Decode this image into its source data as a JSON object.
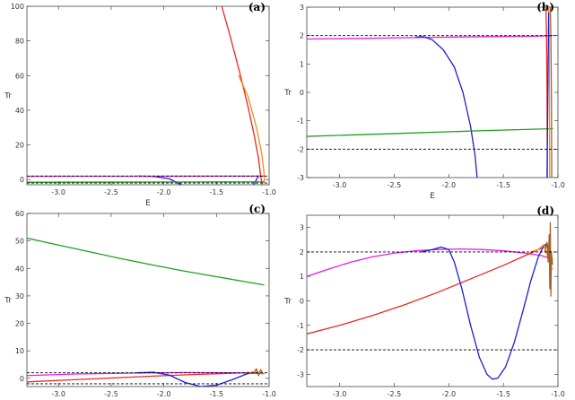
{
  "figure": {
    "background": "#ffffff"
  },
  "colors": {
    "red": "#e8281e",
    "orange": "#f08c1e",
    "blue": "#1e1ed2",
    "green": "#1ea01e",
    "magenta": "#e61ee6",
    "brown": "#a0642d",
    "black": "#000000"
  },
  "chart_data": [
    {
      "type": "line",
      "panel_label": "(a)",
      "xlabel": "E",
      "ylabel": "Tr",
      "xlim": [
        -3.3,
        -1.0
      ],
      "ylim": [
        -3,
        100
      ],
      "xticks": [
        -3.0,
        -2.5,
        -2.0,
        -1.5,
        -1.0
      ],
      "xtick_labels": [
        "-3.0",
        "-2.5",
        "-2.0",
        "-1.5",
        "-1.0"
      ],
      "yticks": [
        0,
        20,
        40,
        60,
        80,
        100
      ],
      "ytick_labels": [
        "0",
        "20",
        "40",
        "60",
        "80",
        "100"
      ],
      "hlines": [
        {
          "y": 2,
          "style": "dashed",
          "color": "#000000"
        },
        {
          "y": -2,
          "style": "dashed",
          "color": "#000000"
        }
      ],
      "series": [
        {
          "color": "#e8281e",
          "points": [
            [
              -1.45,
              100
            ],
            [
              -1.38,
              85
            ],
            [
              -1.28,
              62
            ],
            [
              -1.2,
              42
            ],
            [
              -1.14,
              25
            ],
            [
              -1.1,
              12
            ],
            [
              -1.08,
              2
            ],
            [
              -1.065,
              -3
            ]
          ]
        },
        {
          "color": "#f08c1e",
          "points": [
            [
              -1.29,
              60
            ],
            [
              -1.2,
              48
            ],
            [
              -1.12,
              30
            ],
            [
              -1.07,
              15
            ],
            [
              -1.05,
              5
            ],
            [
              -1.045,
              0
            ],
            [
              -1.05,
              -2
            ]
          ]
        },
        {
          "color": "#1e1ed2",
          "points": [
            [
              -2.25,
              2
            ],
            [
              -2.1,
              1.8
            ],
            [
              -1.95,
              0.5
            ],
            [
              -1.8,
              -4
            ],
            [
              -1.6,
              -10
            ],
            [
              -1.4,
              -13
            ],
            [
              -1.25,
              -12
            ],
            [
              -1.17,
              -6
            ],
            [
              -1.12,
              0
            ],
            [
              -1.1,
              2
            ]
          ]
        },
        {
          "color": "#e61ee6",
          "points": [
            [
              -3.3,
              1.88
            ],
            [
              -2.8,
              1.9
            ],
            [
              -2.3,
              1.93
            ],
            [
              -1.7,
              1.96
            ],
            [
              -1.2,
              1.98
            ],
            [
              -1.05,
              2.0
            ]
          ]
        },
        {
          "color": "#1ea01e",
          "points": [
            [
              -3.3,
              -1.55
            ],
            [
              -2.5,
              -1.48
            ],
            [
              -1.7,
              -1.4
            ],
            [
              -1.05,
              -1.32
            ]
          ]
        }
      ]
    },
    {
      "type": "line",
      "panel_label": "(b)",
      "xlabel": "E",
      "ylabel": "Tr",
      "xlim": [
        -3.3,
        -1.0
      ],
      "ylim": [
        -3,
        3
      ],
      "xticks": [
        -3.0,
        -2.5,
        -2.0,
        -1.5,
        -1.0
      ],
      "xtick_labels": [
        "-3.0",
        "-2.5",
        "-2.0",
        "-1.5",
        "-1.0"
      ],
      "yticks": [
        -3,
        -2,
        -1,
        0,
        1,
        2,
        3
      ],
      "ytick_labels": [
        "-3",
        "-2",
        "-1",
        "0",
        "1",
        "2",
        "3"
      ],
      "hlines": [
        {
          "y": 2,
          "style": "dashed",
          "color": "#000000"
        },
        {
          "y": -2,
          "style": "dashed",
          "color": "#000000"
        }
      ],
      "series": [
        {
          "color": "#e61ee6",
          "points": [
            [
              -3.3,
              1.88
            ],
            [
              -2.8,
              1.9
            ],
            [
              -2.3,
              1.93
            ],
            [
              -1.7,
              1.96
            ],
            [
              -1.2,
              1.98
            ],
            [
              -1.05,
              2.0
            ]
          ]
        },
        {
          "color": "#1e1ed2",
          "points": [
            [
              -2.3,
              1.95
            ],
            [
              -2.23,
              1.96
            ],
            [
              -2.15,
              1.85
            ],
            [
              -2.05,
              1.5
            ],
            [
              -1.95,
              0.9
            ],
            [
              -1.87,
              0.0
            ],
            [
              -1.8,
              -1.2
            ],
            [
              -1.76,
              -2.2
            ],
            [
              -1.74,
              -3.0
            ]
          ]
        },
        {
          "color": "#1ea01e",
          "points": [
            [
              -3.3,
              -1.55
            ],
            [
              -2.5,
              -1.45
            ],
            [
              -1.7,
              -1.35
            ],
            [
              -1.05,
              -1.28
            ]
          ]
        },
        {
          "color": "#e8281e",
          "points": [
            [
              -1.11,
              3
            ],
            [
              -1.105,
              2
            ],
            [
              -1.1,
              0
            ],
            [
              -1.098,
              -2
            ],
            [
              -1.097,
              -3
            ]
          ]
        },
        {
          "color": "#f08c1e",
          "points": [
            [
              -1.085,
              3
            ],
            [
              -1.08,
              2
            ],
            [
              -1.078,
              0
            ],
            [
              -1.077,
              -2
            ],
            [
              -1.076,
              -3
            ]
          ]
        },
        {
          "color": "#1e1ed2",
          "points": [
            [
              -1.1,
              -3
            ],
            [
              -1.095,
              -1
            ],
            [
              -1.09,
              1
            ],
            [
              -1.085,
              2.8
            ]
          ]
        },
        {
          "color": "#a0642d",
          "points": [
            [
              -1.07,
              3
            ],
            [
              -1.065,
              2
            ],
            [
              -1.06,
              0
            ],
            [
              -1.058,
              -2
            ],
            [
              -1.057,
              -3
            ]
          ]
        }
      ]
    },
    {
      "type": "line",
      "panel_label": "(c)",
      "xlabel": "E",
      "ylabel": "Tr",
      "xlim": [
        -3.3,
        -1.0
      ],
      "ylim": [
        -3,
        60
      ],
      "xticks": [
        -3.0,
        -2.5,
        -2.0,
        -1.5,
        -1.0
      ],
      "xtick_labels": [
        "-3.0",
        "-2.5",
        "-2.0",
        "-1.5",
        "-1.0"
      ],
      "yticks": [
        0,
        10,
        20,
        30,
        40,
        50,
        60
      ],
      "ytick_labels": [
        "0",
        "10",
        "20",
        "30",
        "40",
        "50",
        "60"
      ],
      "hlines": [
        {
          "y": 2,
          "style": "dashed",
          "color": "#000000"
        },
        {
          "y": -2,
          "style": "dashed",
          "color": "#000000"
        }
      ],
      "series": [
        {
          "color": "#1ea01e",
          "points": [
            [
              -3.3,
              51
            ],
            [
              -3.0,
              48.5
            ],
            [
              -2.7,
              46
            ],
            [
              -2.4,
              43.5
            ],
            [
              -2.1,
              41.2
            ],
            [
              -1.8,
              39
            ],
            [
              -1.5,
              37
            ],
            [
              -1.2,
              35
            ],
            [
              -1.05,
              34
            ]
          ]
        },
        {
          "color": "#e8281e",
          "points": [
            [
              -3.3,
              -1.3
            ],
            [
              -2.9,
              -0.6
            ],
            [
              -2.5,
              0.1
            ],
            [
              -2.1,
              0.8
            ],
            [
              -1.7,
              1.4
            ],
            [
              -1.3,
              1.9
            ],
            [
              -1.1,
              2.2
            ]
          ]
        },
        {
          "color": "#e61ee6",
          "points": [
            [
              -3.3,
              1.0
            ],
            [
              -2.8,
              1.6
            ],
            [
              -2.3,
              1.9
            ],
            [
              -1.8,
              2.1
            ],
            [
              -1.3,
              2.0
            ],
            [
              -1.05,
              1.7
            ]
          ]
        },
        {
          "color": "#1e1ed2",
          "points": [
            [
              -2.25,
              2.0
            ],
            [
              -2.1,
              2.2
            ],
            [
              -1.95,
              1.2
            ],
            [
              -1.8,
              -1.5
            ],
            [
              -1.65,
              -3.0
            ],
            [
              -1.5,
              -2.5
            ],
            [
              -1.35,
              -0.5
            ],
            [
              -1.22,
              1.5
            ],
            [
              -1.15,
              2.2
            ]
          ]
        },
        {
          "color": "#a0642d",
          "points": [
            [
              -1.15,
              2.0
            ],
            [
              -1.12,
              3.5
            ],
            [
              -1.1,
              1.0
            ],
            [
              -1.08,
              3.2
            ],
            [
              -1.06,
              1.8
            ]
          ]
        },
        {
          "color": "#f08c1e",
          "points": [
            [
              -1.2,
              2.0
            ],
            [
              -1.12,
              2.5
            ],
            [
              -1.06,
              1.6
            ]
          ]
        }
      ]
    },
    {
      "type": "line",
      "panel_label": "(d)",
      "xlabel": "E",
      "ylabel": "Tr",
      "xlim": [
        -3.3,
        -1.0
      ],
      "ylim": [
        -3.5,
        3.5
      ],
      "xticks": [
        -3.0,
        -2.5,
        -2.0,
        -1.5,
        -1.0
      ],
      "xtick_labels": [
        "-3.0",
        "-2.5",
        "-2.0",
        "-1.5",
        "-1.0"
      ],
      "yticks": [
        -3,
        -2,
        -1,
        0,
        1,
        2,
        3
      ],
      "ytick_labels": [
        "-3",
        "-2",
        "-1",
        "0",
        "1",
        "2",
        "3"
      ],
      "hlines": [
        {
          "y": 2,
          "style": "dashed",
          "color": "#000000"
        },
        {
          "y": -2,
          "style": "dashed",
          "color": "#000000"
        }
      ],
      "series": [
        {
          "color": "#e61ee6",
          "points": [
            [
              -3.3,
              1.0
            ],
            [
              -3.1,
              1.3
            ],
            [
              -2.9,
              1.58
            ],
            [
              -2.7,
              1.8
            ],
            [
              -2.5,
              1.95
            ],
            [
              -2.3,
              2.05
            ],
            [
              -2.1,
              2.1
            ],
            [
              -1.9,
              2.12
            ],
            [
              -1.7,
              2.1
            ],
            [
              -1.5,
              2.05
            ],
            [
              -1.3,
              1.95
            ],
            [
              -1.15,
              1.85
            ],
            [
              -1.05,
              1.7
            ]
          ]
        },
        {
          "color": "#e8281e",
          "points": [
            [
              -3.3,
              -1.35
            ],
            [
              -3.0,
              -1.0
            ],
            [
              -2.7,
              -0.6
            ],
            [
              -2.4,
              -0.15
            ],
            [
              -2.1,
              0.35
            ],
            [
              -1.8,
              0.9
            ],
            [
              -1.5,
              1.45
            ],
            [
              -1.3,
              1.85
            ],
            [
              -1.15,
              2.15
            ],
            [
              -1.1,
              2.3
            ]
          ]
        },
        {
          "color": "#1e1ed2",
          "points": [
            [
              -2.25,
              2.0
            ],
            [
              -2.15,
              2.1
            ],
            [
              -2.07,
              2.2
            ],
            [
              -2.0,
              2.1
            ],
            [
              -1.95,
              1.6
            ],
            [
              -1.88,
              0.5
            ],
            [
              -1.8,
              -1.0
            ],
            [
              -1.72,
              -2.3
            ],
            [
              -1.65,
              -3.0
            ],
            [
              -1.6,
              -3.2
            ],
            [
              -1.55,
              -3.15
            ],
            [
              -1.48,
              -2.7
            ],
            [
              -1.4,
              -1.7
            ],
            [
              -1.32,
              -0.4
            ],
            [
              -1.25,
              0.8
            ],
            [
              -1.18,
              1.8
            ],
            [
              -1.13,
              2.25
            ],
            [
              -1.1,
              2.35
            ],
            [
              -1.08,
              2.0
            ],
            [
              -1.06,
              1.4
            ]
          ]
        },
        {
          "color": "#f08c1e",
          "points": [
            [
              -1.25,
              2.0
            ],
            [
              -1.18,
              2.1
            ],
            [
              -1.13,
              2.3
            ],
            [
              -1.1,
              1.9
            ],
            [
              -1.07,
              1.4
            ],
            [
              -1.05,
              1.3
            ]
          ]
        },
        {
          "color": "#a0642d",
          "points": [
            [
              -1.12,
              2.0
            ],
            [
              -1.1,
              2.4
            ],
            [
              -1.09,
              1.6
            ],
            [
              -1.08,
              2.7
            ],
            [
              -1.075,
              0.5
            ],
            [
              -1.07,
              3.2
            ],
            [
              -1.065,
              0.2
            ],
            [
              -1.06,
              2.0
            ],
            [
              -1.05,
              1.5
            ]
          ]
        }
      ]
    }
  ]
}
